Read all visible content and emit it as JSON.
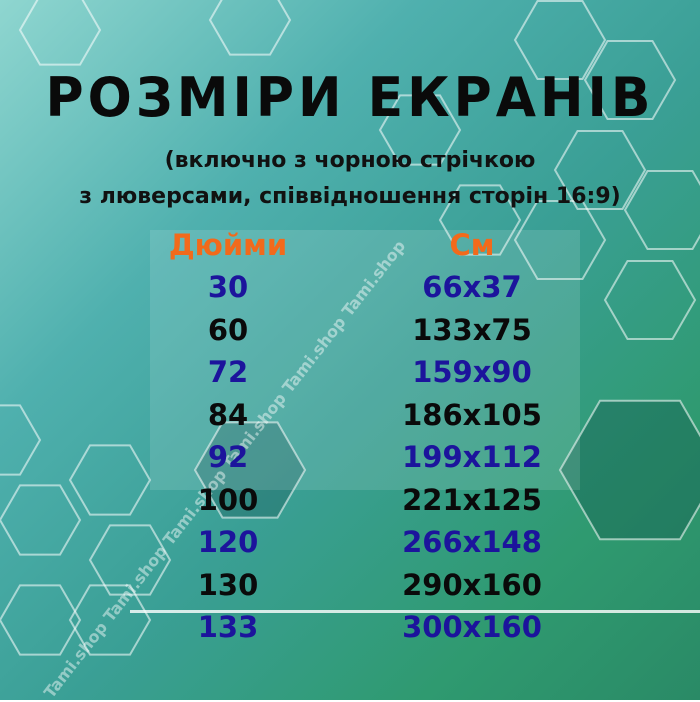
{
  "title": "РОЗМІРИ ЕКРАНІВ",
  "subtitle_lines": [
    "(включно з чорною стрічкою",
    "з люверсами, співвідношення сторін 16:9)"
  ],
  "table": {
    "headers": [
      "Дюйми",
      "См"
    ],
    "rows": [
      {
        "inches": "30",
        "cm": "66x37",
        "color": "blue"
      },
      {
        "inches": "60",
        "cm": "133x75",
        "color": "black"
      },
      {
        "inches": "72",
        "cm": "159x90",
        "color": "blue"
      },
      {
        "inches": "84",
        "cm": "186x105",
        "color": "black"
      },
      {
        "inches": "92",
        "cm": "199x112",
        "color": "blue"
      },
      {
        "inches": "100",
        "cm": "221x125",
        "color": "black"
      },
      {
        "inches": "120",
        "cm": "266x148",
        "color": "blue"
      },
      {
        "inches": "130",
        "cm": "290x160",
        "color": "black"
      },
      {
        "inches": "133",
        "cm": "300x160",
        "color": "blue"
      }
    ]
  },
  "watermark": "Tami.shop Tami.shop Tami.shop Tami.shop Tami.shop Tami.shop",
  "colors": {
    "header": "#f26a1b",
    "blue": "#1c149c",
    "black": "#0a0a0a"
  }
}
